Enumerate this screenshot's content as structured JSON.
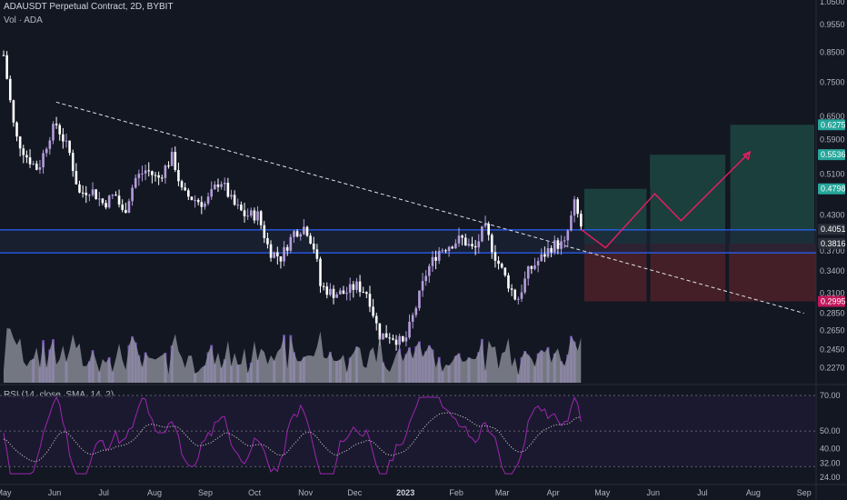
{
  "header": {
    "title": "ADAUSDT Perpetual Contract, 2D, BYBIT",
    "volume_label": "Vol · ADA"
  },
  "rsi_header": "RSI (14, close, SMA, 14, 2)",
  "colors": {
    "background": "#131722",
    "candle_up": "#b39ddb",
    "candle_down": "#ffffff",
    "volume_purple": "#7e57c2",
    "volume_gray": "#9598a1",
    "rsi_line": "#9c27b0",
    "rsi_sma": "#e0e0e0",
    "zone_line": "#2962ff",
    "target_zone": "#1e4a45",
    "stop_zone": "#4e2129",
    "projection": "#e91e63"
  },
  "chart_data": {
    "type": "candlestick",
    "price_scale": "log",
    "price_ticks": [
      "1.0500",
      "0.9550",
      "0.8500",
      "0.7500",
      "0.6500",
      "0.5900",
      "0.5100",
      "0.4300",
      "0.3700",
      "0.3400",
      "0.3100",
      "0.2850",
      "0.2650",
      "0.2450",
      "0.2270"
    ],
    "price_labels": [
      {
        "value": "0.6275",
        "kind": "target"
      },
      {
        "value": "0.5536",
        "kind": "target"
      },
      {
        "value": "0.4798",
        "kind": "target"
      },
      {
        "value": "0.4051",
        "kind": "current"
      },
      {
        "value": "0.3816",
        "kind": "entry"
      },
      {
        "value": "0.2995",
        "kind": "stop"
      }
    ],
    "x_ticks": [
      {
        "label": "May",
        "bold": false
      },
      {
        "label": "Jun",
        "bold": false
      },
      {
        "label": "Jul",
        "bold": false
      },
      {
        "label": "Aug",
        "bold": false
      },
      {
        "label": "Sep",
        "bold": false
      },
      {
        "label": "Oct",
        "bold": false
      },
      {
        "label": "Nov",
        "bold": false
      },
      {
        "label": "Dec",
        "bold": false
      },
      {
        "label": "2023",
        "bold": true
      },
      {
        "label": "Feb",
        "bold": false
      },
      {
        "label": "Mar",
        "bold": false
      },
      {
        "label": "Apr",
        "bold": false
      },
      {
        "label": "May",
        "bold": false
      },
      {
        "label": "Jun",
        "bold": false
      },
      {
        "label": "Jul",
        "bold": false
      },
      {
        "label": "Aug",
        "bold": false
      },
      {
        "label": "Sep",
        "bold": false
      }
    ],
    "close_path": [
      [
        "2022-05-01",
        0.84
      ],
      [
        "2022-05-08",
        0.6
      ],
      [
        "2022-05-15",
        0.55
      ],
      [
        "2022-05-22",
        0.52
      ],
      [
        "2022-05-29",
        0.6
      ],
      [
        "2022-06-02",
        0.63
      ],
      [
        "2022-06-10",
        0.56
      ],
      [
        "2022-06-16",
        0.47
      ],
      [
        "2022-06-23",
        0.48
      ],
      [
        "2022-07-01",
        0.45
      ],
      [
        "2022-07-08",
        0.47
      ],
      [
        "2022-07-13",
        0.43
      ],
      [
        "2022-07-20",
        0.5
      ],
      [
        "2022-07-27",
        0.52
      ],
      [
        "2022-08-03",
        0.5
      ],
      [
        "2022-08-12",
        0.55
      ],
      [
        "2022-08-18",
        0.47
      ],
      [
        "2022-08-25",
        0.46
      ],
      [
        "2022-09-01",
        0.45
      ],
      [
        "2022-09-10",
        0.5
      ],
      [
        "2022-09-18",
        0.45
      ],
      [
        "2022-09-25",
        0.43
      ],
      [
        "2022-10-03",
        0.43
      ],
      [
        "2022-10-10",
        0.37
      ],
      [
        "2022-10-17",
        0.36
      ],
      [
        "2022-10-25",
        0.4
      ],
      [
        "2022-11-01",
        0.41
      ],
      [
        "2022-11-07",
        0.37
      ],
      [
        "2022-11-10",
        0.32
      ],
      [
        "2022-11-17",
        0.31
      ],
      [
        "2022-11-25",
        0.31
      ],
      [
        "2022-12-02",
        0.32
      ],
      [
        "2022-12-09",
        0.31
      ],
      [
        "2022-12-16",
        0.26
      ],
      [
        "2022-12-23",
        0.26
      ],
      [
        "2022-12-31",
        0.25
      ],
      [
        "2023-01-07",
        0.29
      ],
      [
        "2023-01-14",
        0.34
      ],
      [
        "2023-01-21",
        0.37
      ],
      [
        "2023-01-28",
        0.38
      ],
      [
        "2023-02-04",
        0.39
      ],
      [
        "2023-02-12",
        0.37
      ],
      [
        "2023-02-18",
        0.41
      ],
      [
        "2023-02-25",
        0.36
      ],
      [
        "2023-03-03",
        0.33
      ],
      [
        "2023-03-10",
        0.3
      ],
      [
        "2023-03-17",
        0.34
      ],
      [
        "2023-03-25",
        0.36
      ],
      [
        "2023-04-01",
        0.38
      ],
      [
        "2023-04-08",
        0.38
      ],
      [
        "2023-04-14",
        0.45
      ],
      [
        "2023-04-18",
        0.41
      ]
    ],
    "trendline": {
      "from": [
        "2022-06-02",
        0.69
      ],
      "to": [
        "2023-09-01",
        0.285
      ],
      "style": "dashed"
    },
    "zone": {
      "top": 0.404,
      "bottom": 0.367
    },
    "trade_setup": {
      "entry": 0.3816,
      "stop": 0.2995,
      "targets": [
        0.4798,
        0.5536,
        0.6275
      ]
    },
    "projection_path": [
      [
        "2023-04-18",
        0.405
      ],
      [
        "2023-05-03",
        0.375
      ],
      [
        "2023-06-02",
        0.47
      ],
      [
        "2023-06-18",
        0.42
      ],
      [
        "2023-07-30",
        0.56
      ]
    ],
    "rsi": {
      "ticks": [
        "70.00",
        "50.00",
        "40.00",
        "32.00",
        "24.00"
      ],
      "upper_band": 70,
      "lower_band": 30
    }
  }
}
